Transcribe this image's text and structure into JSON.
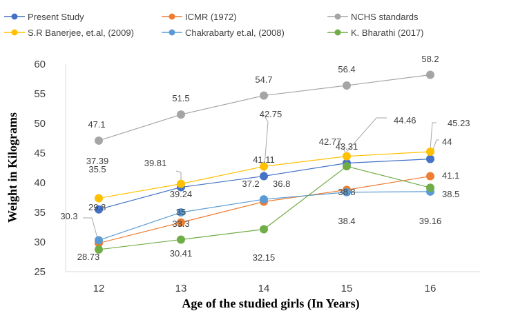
{
  "chart_data": {
    "type": "line",
    "xlabel": "Age of the studied girls (In Years)",
    "ylabel": "Weight in Kilograms",
    "x": [
      12,
      13,
      14,
      15,
      16
    ],
    "ylim": [
      25,
      60
    ],
    "yticks": [
      25,
      30,
      35,
      40,
      45,
      50,
      55,
      60
    ],
    "grid": false,
    "legend_position": "top",
    "series": [
      {
        "name": "Present Study",
        "color": "#4472C4",
        "values": [
          35.5,
          39.24,
          41.11,
          43.31,
          44
        ],
        "labels": [
          "35.5",
          "39.24",
          "41.11",
          "43.31",
          "44"
        ]
      },
      {
        "name": "ICMR (1972)",
        "color": "#ED7D31",
        "values": [
          29.8,
          33.3,
          36.8,
          38.8,
          41.1
        ],
        "labels": [
          "29.8",
          "33.3",
          "36.8",
          "38.8",
          "41.1"
        ]
      },
      {
        "name": "NCHS standards",
        "color": "#A5A5A5",
        "values": [
          47.1,
          51.5,
          54.7,
          56.4,
          58.2
        ],
        "labels": [
          "47.1",
          "51.5",
          "54.7",
          "56.4",
          "58.2"
        ]
      },
      {
        "name": "S.R Banerjee, et.al, (2009)",
        "color": "#FFC000",
        "values": [
          37.39,
          39.81,
          42.75,
          44.46,
          45.23
        ],
        "labels": [
          "37.39",
          "39.81",
          "42.75",
          "44.46",
          "45.23"
        ]
      },
      {
        "name": "Chakrabarty et.al, (2008)",
        "color": "#5B9BD5",
        "values": [
          30.3,
          35,
          37.2,
          38.4,
          38.5
        ],
        "labels": [
          "30.3",
          "35",
          "37.2",
          "38.4",
          "38.5"
        ]
      },
      {
        "name": "K. Bharathi (2017)",
        "color": "#70AD47",
        "values": [
          28.73,
          30.41,
          32.15,
          42.77,
          39.16
        ],
        "labels": [
          "28.73",
          "30.41",
          "32.15",
          "42.77",
          "39.16"
        ]
      }
    ]
  }
}
